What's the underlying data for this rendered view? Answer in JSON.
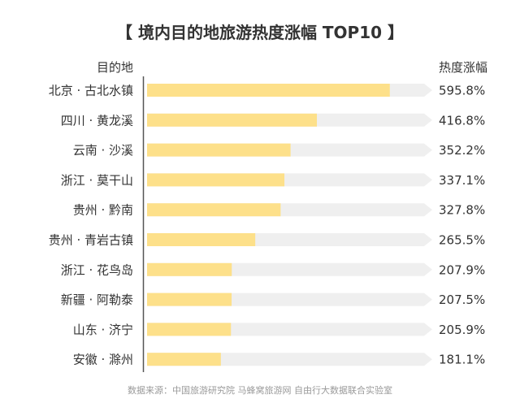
{
  "chart_data": {
    "type": "bar",
    "orientation": "horizontal",
    "title": "【 境内目的地旅游热度涨幅 TOP10 】",
    "category_axis_label": "目的地",
    "value_axis_label": "热度涨幅",
    "categories": [
      "北京 · 古北水镇",
      "四川 · 黄龙溪",
      "云南 · 沙溪",
      "浙江 · 莫干山",
      "贵州 · 黔南",
      "贵州 · 青岩古镇",
      "浙江 · 花鸟岛",
      "新疆 · 阿勒泰",
      "山东 · 济宁",
      "安徽 · 滁州"
    ],
    "values": [
      595.8,
      416.8,
      352.2,
      337.1,
      327.8,
      265.5,
      207.9,
      207.5,
      205.9,
      181.1
    ],
    "value_labels": [
      "595.8%",
      "416.8%",
      "352.2%",
      "337.1%",
      "327.8%",
      "265.5%",
      "207.9%",
      "207.5%",
      "205.9%",
      "181.1%"
    ],
    "xlim": [
      0,
      680
    ],
    "grid": false,
    "bar_color": "#fde08a",
    "track_color": "#efefef"
  },
  "source": "数据来源：中国旅游研究院 马蜂窝旅游网 自由行大数据联合实验室"
}
